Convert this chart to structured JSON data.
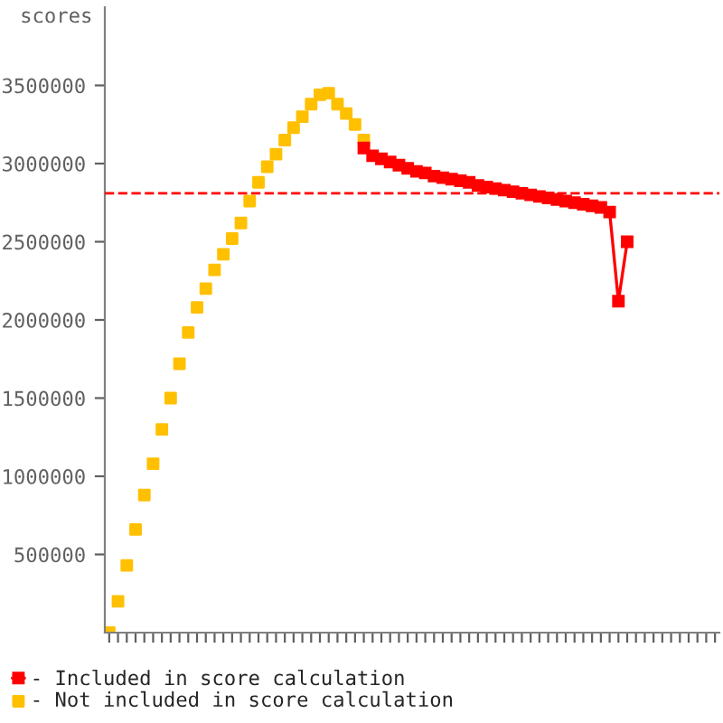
{
  "chart_data": {
    "type": "scatter",
    "ylabel": "scores",
    "marker": "square",
    "grid": false,
    "legend": "bottom left",
    "categories": [
      null,
      null,
      null,
      null,
      null,
      null,
      null,
      null,
      null,
      null,
      null,
      null,
      null,
      null,
      null,
      null,
      null,
      null,
      null,
      null,
      null,
      null,
      null,
      null,
      null,
      null,
      null,
      null,
      null,
      null,
      null,
      null,
      null,
      null,
      null,
      null,
      null,
      null,
      null,
      null,
      null,
      null,
      null,
      null,
      null,
      null,
      null,
      null,
      null,
      null,
      null,
      null,
      null,
      null,
      null,
      null,
      null,
      null,
      null,
      null,
      null,
      null,
      null,
      null,
      null,
      null,
      null,
      null,
      null,
      null
    ],
    "series": [
      {
        "name": "- Included in score calculation",
        "type": "line",
        "color": "#ff0000",
        "values": [
          null,
          null,
          null,
          null,
          null,
          null,
          null,
          null,
          null,
          null,
          null,
          null,
          null,
          null,
          null,
          null,
          null,
          null,
          null,
          null,
          null,
          null,
          null,
          null,
          null,
          null,
          null,
          null,
          null,
          3100000,
          3050000,
          3030000,
          3010000,
          2990000,
          2970000,
          2950000,
          2940000,
          2920000,
          2910000,
          2900000,
          2890000,
          2880000,
          2860000,
          2850000,
          2840000,
          2830000,
          2820000,
          2810000,
          2800000,
          2790000,
          2780000,
          2770000,
          2760000,
          2750000,
          2740000,
          2730000,
          2720000,
          2690000,
          2120000,
          2500000,
          null,
          null,
          null,
          null,
          null,
          null,
          null,
          null,
          null,
          null
        ]
      },
      {
        "name": "- Not included in score calculation",
        "color": "#ffc000",
        "values": [
          0,
          200000,
          430000,
          660000,
          880000,
          1080000,
          1300000,
          1500000,
          1720000,
          1920000,
          2080000,
          2200000,
          2320000,
          2420000,
          2520000,
          2620000,
          2760000,
          2880000,
          2980000,
          3060000,
          3150000,
          3230000,
          3300000,
          3380000,
          3440000,
          3450000,
          3380000,
          3320000,
          3250000,
          3150000,
          null,
          null,
          null,
          null,
          null,
          null,
          null,
          null,
          null,
          null,
          null,
          null,
          null,
          null,
          null,
          null,
          null,
          null,
          null,
          null,
          null,
          null,
          null,
          null,
          null,
          null,
          null,
          null,
          null,
          null,
          null,
          null,
          null,
          null,
          null,
          null,
          null,
          null,
          null,
          null
        ]
      }
    ],
    "ylim": [
      0,
      4000000
    ],
    "yticks": [
      500000,
      1000000,
      1500000,
      2000000,
      2500000,
      3000000,
      3500000
    ],
    "ref_lines": [
      {
        "axis": "y",
        "value": 2810000,
        "color": "#ff0000",
        "line_style": "dashed"
      }
    ]
  }
}
